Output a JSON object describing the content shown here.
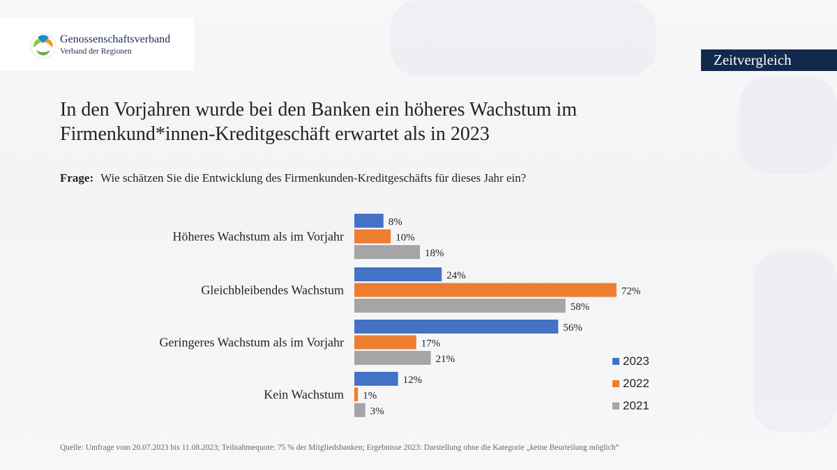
{
  "header": {
    "logo_title": "Genossenschaftsverband",
    "logo_subtitle": "Verband der Regionen",
    "tag": "Zeitvergleich"
  },
  "title_line1": "In den Vorjahren wurde bei den Banken ein höheres Wachstum im",
  "title_line2": "Firmenkund*innen-Kreditgeschäft erwartet als in 2023",
  "question_label": "Frage:",
  "question_text": "Wie schätzen Sie die Entwicklung des Firmenkunden-Kreditgeschäfts für dieses Jahr ein?",
  "source": "Quelle: Umfrage vom 20.07.2023 bis 11.08.2023; Teilnahmequote: 75 % der Mitgliedsbanken; Ergebnisse 2023: Darstellung ohne die Kategorie „keine Beurteilung möglich“",
  "chart_data": {
    "type": "bar",
    "orientation": "horizontal",
    "categories": [
      "Höheres Wachstum als im Vorjahr",
      "Gleichbleibendes Wachstum",
      "Geringeres Wachstum als im Vorjahr",
      "Kein Wachstum"
    ],
    "series": [
      {
        "name": "2023",
        "color": "#4472c4",
        "values": [
          8,
          24,
          56,
          12
        ]
      },
      {
        "name": "2022",
        "color": "#ed7d31",
        "values": [
          10,
          72,
          17,
          1
        ]
      },
      {
        "name": "2021",
        "color": "#a5a5a5",
        "values": [
          18,
          58,
          21,
          3
        ]
      }
    ],
    "value_suffix": "%",
    "xlim": [
      0,
      100
    ],
    "legend_position": "bottom-right",
    "grid": false
  }
}
